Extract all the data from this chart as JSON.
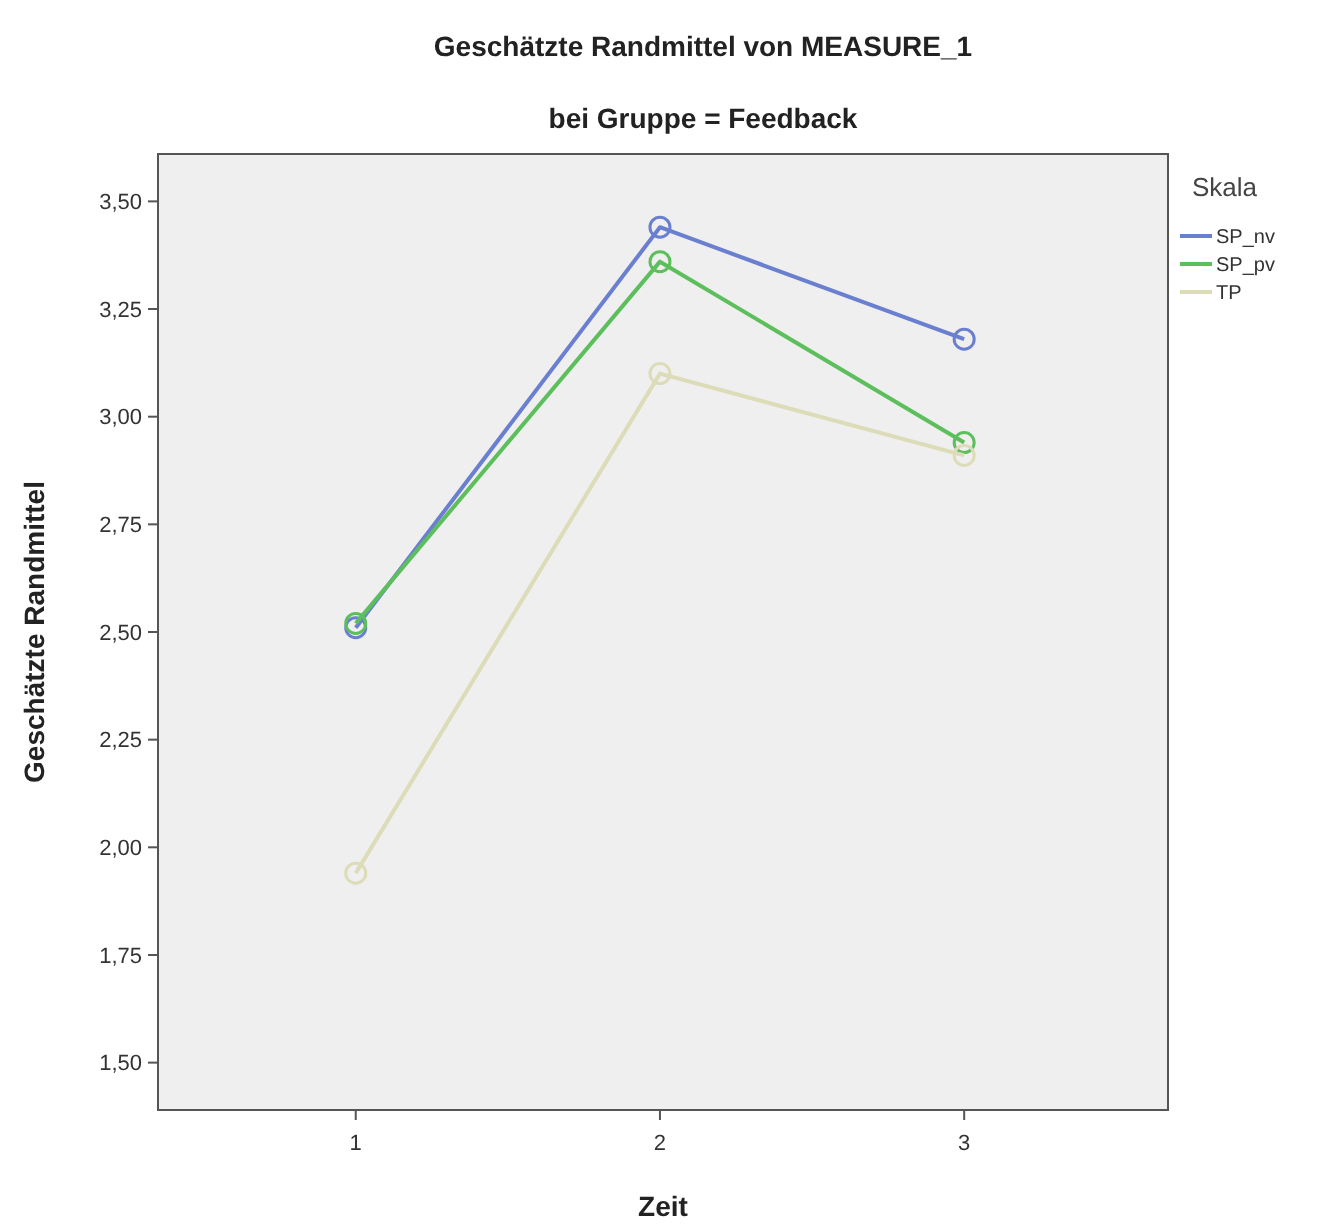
{
  "chart_data": {
    "type": "line",
    "title": "Geschätzte Randmittel von MEASURE_1",
    "subtitle": "bei Gruppe = Feedback",
    "xlabel": "Zeit",
    "ylabel": "Geschätzte Randmittel",
    "legend_title": "Skala",
    "legend": "right",
    "marker": "circle",
    "line_style": "solid",
    "grid": false,
    "x": [
      1,
      2,
      3
    ],
    "xlim": [
      0.35,
      3.67
    ],
    "xticks": [
      1,
      2,
      3
    ],
    "ylim": [
      1.39,
      3.61
    ],
    "yticks": [
      {
        "value": 1.5,
        "label": "1,50"
      },
      {
        "value": 1.75,
        "label": "1,75"
      },
      {
        "value": 2,
        "label": "2,00"
      },
      {
        "value": 2.25,
        "label": "2,25"
      },
      {
        "value": 2.5,
        "label": "2,50"
      },
      {
        "value": 2.75,
        "label": "2,75"
      },
      {
        "value": 3,
        "label": "3,00"
      },
      {
        "value": 3.25,
        "label": "3,25"
      },
      {
        "value": 3.5,
        "label": "3,50"
      }
    ],
    "series": [
      {
        "name": "SP_nv",
        "color": "#6a7fd0",
        "values": [
          2.51,
          3.44,
          3.18
        ]
      },
      {
        "name": "SP_pv",
        "color": "#5cbf5c",
        "values": [
          2.52,
          3.36,
          2.94
        ]
      },
      {
        "name": "TP",
        "color": "#dcdcb8",
        "values": [
          1.94,
          3.1,
          2.91
        ]
      }
    ]
  }
}
